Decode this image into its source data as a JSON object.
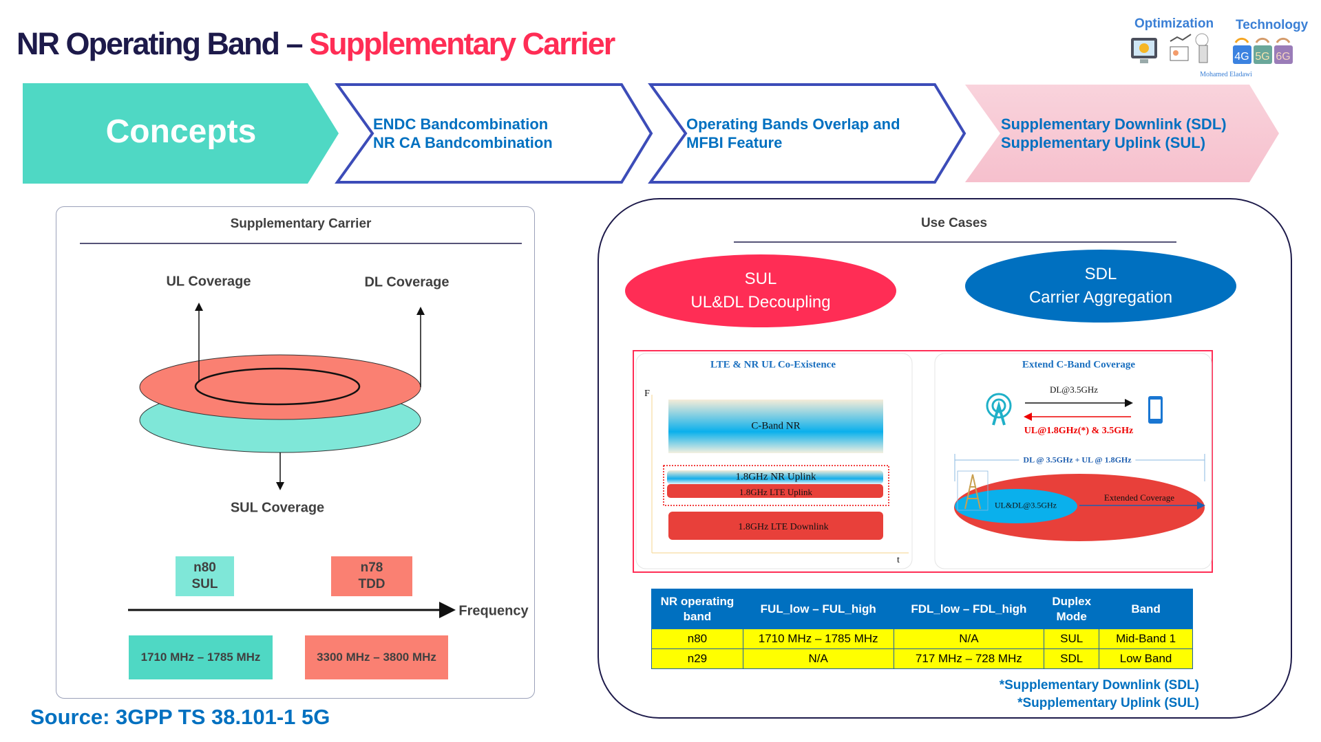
{
  "title": {
    "part1": "NR Operating Band – ",
    "part2": "Supplementary Carrier"
  },
  "branding": {
    "optimization": "Optimization",
    "technology": "Technology",
    "author": "Mohamed Eladawi",
    "badges": [
      "4G",
      "5G",
      "6G"
    ]
  },
  "chevrons": [
    {
      "lines": [
        "Concepts"
      ],
      "active": true
    },
    {
      "lines": [
        "ENDC Bandcombination",
        "NR CA Bandcombination"
      ]
    },
    {
      "lines": [
        "Operating Bands Overlap and",
        "MFBI Feature"
      ]
    },
    {
      "lines": [
        "Supplementary Downlink (SDL)",
        "Supplementary Uplink (SUL)"
      ],
      "highlight": true
    }
  ],
  "left_panel": {
    "title": "Supplementary Carrier",
    "ul_coverage": "UL Coverage",
    "dl_coverage": "DL Coverage",
    "sul_coverage": "SUL Coverage",
    "bands": [
      {
        "name": "n80",
        "type": "SUL",
        "range": "1710 MHz – 1785 MHz",
        "color": "#7fe7d8"
      },
      {
        "name": "n78",
        "type": "TDD",
        "range": "3300 MHz – 3800 MHz",
        "color": "#fa8072"
      }
    ],
    "axis_label": "Frequency"
  },
  "right_panel": {
    "title": "Use Cases",
    "sul_oval": {
      "line1": "SUL",
      "line2": "UL&DL Decoupling",
      "color": "#ff2d55"
    },
    "sdl_oval": {
      "line1": "SDL",
      "line2": "Carrier Aggregation",
      "color": "#0070c0"
    },
    "coexistence": {
      "title": "LTE & NR UL Co-Existence",
      "f_axis": "F",
      "t_axis": "t",
      "cband": "C-Band NR",
      "nr_uplink": "1.8GHz NR Uplink",
      "lte_uplink": "1.8GHz LTE Uplink",
      "lte_downlink": "1.8GHz LTE Downlink"
    },
    "extend": {
      "title": "Extend C-Band Coverage",
      "dl": "DL@3.5GHz",
      "ul": "UL@1.8GHz(*) & 3.5GHz",
      "span": "DL @ 3.5GHz + UL @ 1.8GHz",
      "inner": "UL&DL@3.5GHz",
      "outer": "Extended Coverage"
    },
    "table": {
      "headers": [
        "NR operating band",
        "FUL_low – FUL_high",
        "FDL_low – FDL_high",
        "Duplex Mode",
        "Band"
      ],
      "rows": [
        [
          "n80",
          "1710 MHz – 1785 MHz",
          "N/A",
          "SUL",
          "Mid-Band 1"
        ],
        [
          "n29",
          "N/A",
          "717 MHz – 728 MHz",
          "SDL",
          "Low Band"
        ]
      ]
    },
    "footnotes": [
      "*Supplementary Downlink (SDL)",
      "*Supplementary Uplink (SUL)"
    ]
  },
  "source": "Source: 3GPP TS 38.101-1 5G"
}
